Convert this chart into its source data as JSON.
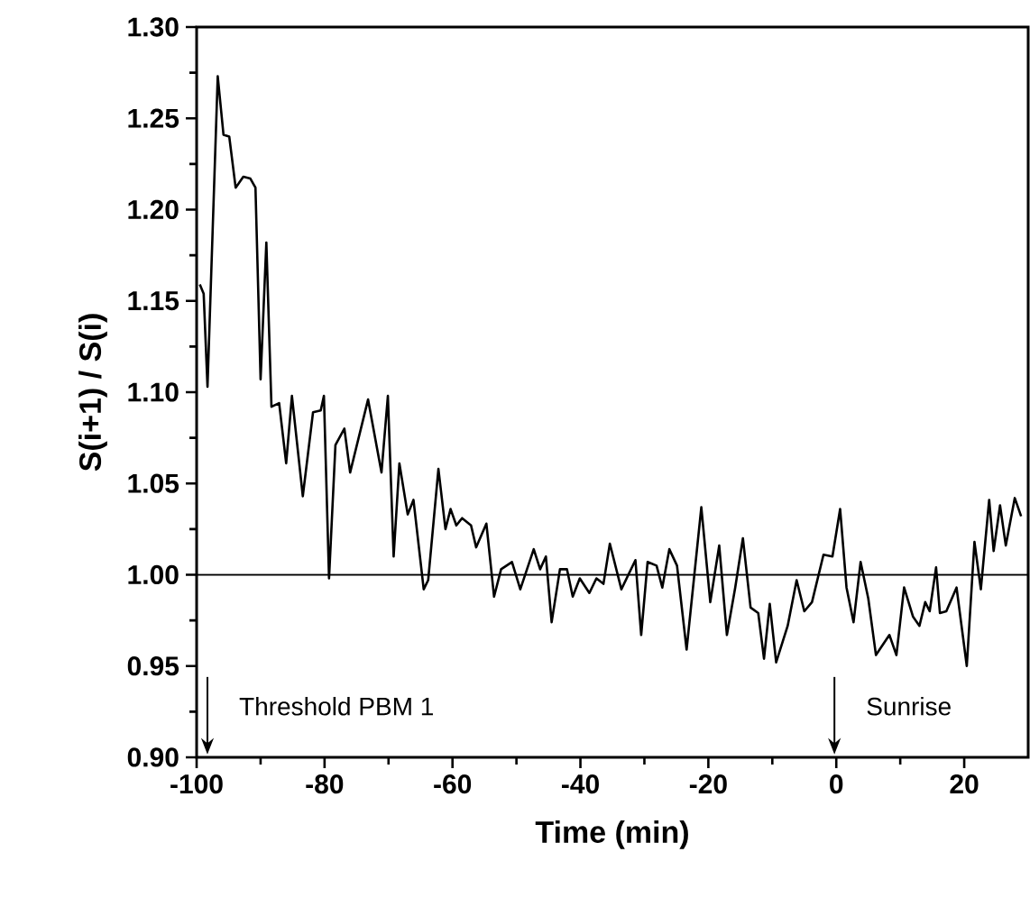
{
  "chart_data": {
    "type": "line",
    "xlabel": "Time (min)",
    "ylabel": "S(i+1) / S(i)",
    "xlim": [
      -100,
      30
    ],
    "ylim": [
      0.9,
      1.3
    ],
    "xticks": [
      -100,
      -80,
      -60,
      -40,
      -20,
      0,
      20
    ],
    "yticks": [
      {
        "value": 0.9,
        "label": "0.90"
      },
      {
        "value": 0.95,
        "label": "0.95"
      },
      {
        "value": 1.0,
        "label": "1.00"
      },
      {
        "value": 1.05,
        "label": "1.05"
      },
      {
        "value": 1.1,
        "label": "1.10"
      },
      {
        "value": 1.15,
        "label": "1.15"
      },
      {
        "value": 1.2,
        "label": "1.20"
      },
      {
        "value": 1.25,
        "label": "1.25"
      },
      {
        "value": 1.3,
        "label": "1.30"
      }
    ],
    "x": [
      -99.5,
      -98.9,
      -98.3,
      -96.7,
      -95.8,
      -94.9,
      -93.9,
      -92.7,
      -91.6,
      -90.8,
      -90.0,
      -89.1,
      -88.3,
      -87.1,
      -86.0,
      -85.1,
      -83.4,
      -81.8,
      -80.6,
      -80.1,
      -79.3,
      -78.3,
      -76.9,
      -76.0,
      -73.2,
      -71.1,
      -70.1,
      -69.2,
      -68.3,
      -67.0,
      -66.1,
      -64.5,
      -63.8,
      -62.2,
      -61.1,
      -60.3,
      -59.4,
      -58.5,
      -57.1,
      -56.3,
      -54.7,
      -53.5,
      -52.4,
      -50.7,
      -49.4,
      -47.3,
      -46.3,
      -45.4,
      -44.5,
      -43.2,
      -42.1,
      -41.2,
      -40.1,
      -38.6,
      -37.5,
      -36.4,
      -35.4,
      -33.6,
      -31.4,
      -30.5,
      -29.5,
      -28.1,
      -27.2,
      -26.1,
      -24.9,
      -23.4,
      -21.1,
      -19.7,
      -18.3,
      -17.1,
      -15.8,
      -14.6,
      -13.4,
      -12.2,
      -11.3,
      -10.4,
      -9.4,
      -7.6,
      -6.2,
      -5.0,
      -3.8,
      -2.0,
      -0.6,
      0.6,
      1.6,
      2.7,
      3.8,
      5.0,
      6.2,
      8.3,
      9.4,
      10.6,
      12.0,
      13.0,
      13.9,
      14.6,
      15.6,
      16.2,
      17.2,
      18.8,
      20.4,
      21.6,
      22.6,
      23.9,
      24.6,
      25.6,
      26.5,
      27.9,
      28.9
    ],
    "series": [
      {
        "color": "#000000",
        "values": [
          1.159,
          1.154,
          1.103,
          1.273,
          1.241,
          1.24,
          1.212,
          1.218,
          1.217,
          1.212,
          1.107,
          1.182,
          1.092,
          1.094,
          1.061,
          1.098,
          1.043,
          1.089,
          1.09,
          1.098,
          0.998,
          1.071,
          1.08,
          1.056,
          1.096,
          1.056,
          1.098,
          1.01,
          1.061,
          1.033,
          1.041,
          0.992,
          0.997,
          1.058,
          1.025,
          1.036,
          1.027,
          1.031,
          1.027,
          1.015,
          1.028,
          0.988,
          1.003,
          1.007,
          0.992,
          1.014,
          1.003,
          1.01,
          0.974,
          1.003,
          1.003,
          0.988,
          0.998,
          0.99,
          0.998,
          0.995,
          1.017,
          0.992,
          1.008,
          0.967,
          1.007,
          1.005,
          0.993,
          1.014,
          1.005,
          0.959,
          1.037,
          0.985,
          1.016,
          0.967,
          0.993,
          1.02,
          0.982,
          0.979,
          0.954,
          0.984,
          0.952,
          0.972,
          0.997,
          0.98,
          0.985,
          1.011,
          1.01,
          1.036,
          0.993,
          0.974,
          1.007,
          0.987,
          0.956,
          0.967,
          0.956,
          0.993,
          0.977,
          0.972,
          0.985,
          0.98,
          1.004,
          0.979,
          0.98,
          0.993,
          0.95,
          1.018,
          0.992,
          1.041,
          1.013,
          1.038,
          1.016,
          1.042,
          1.032
        ]
      }
    ],
    "ref_lines": [
      {
        "axis": "y",
        "value": 1.0,
        "color": "#000000"
      }
    ],
    "annotations": [
      "Threshold PBM 1",
      "Sunrise"
    ]
  }
}
